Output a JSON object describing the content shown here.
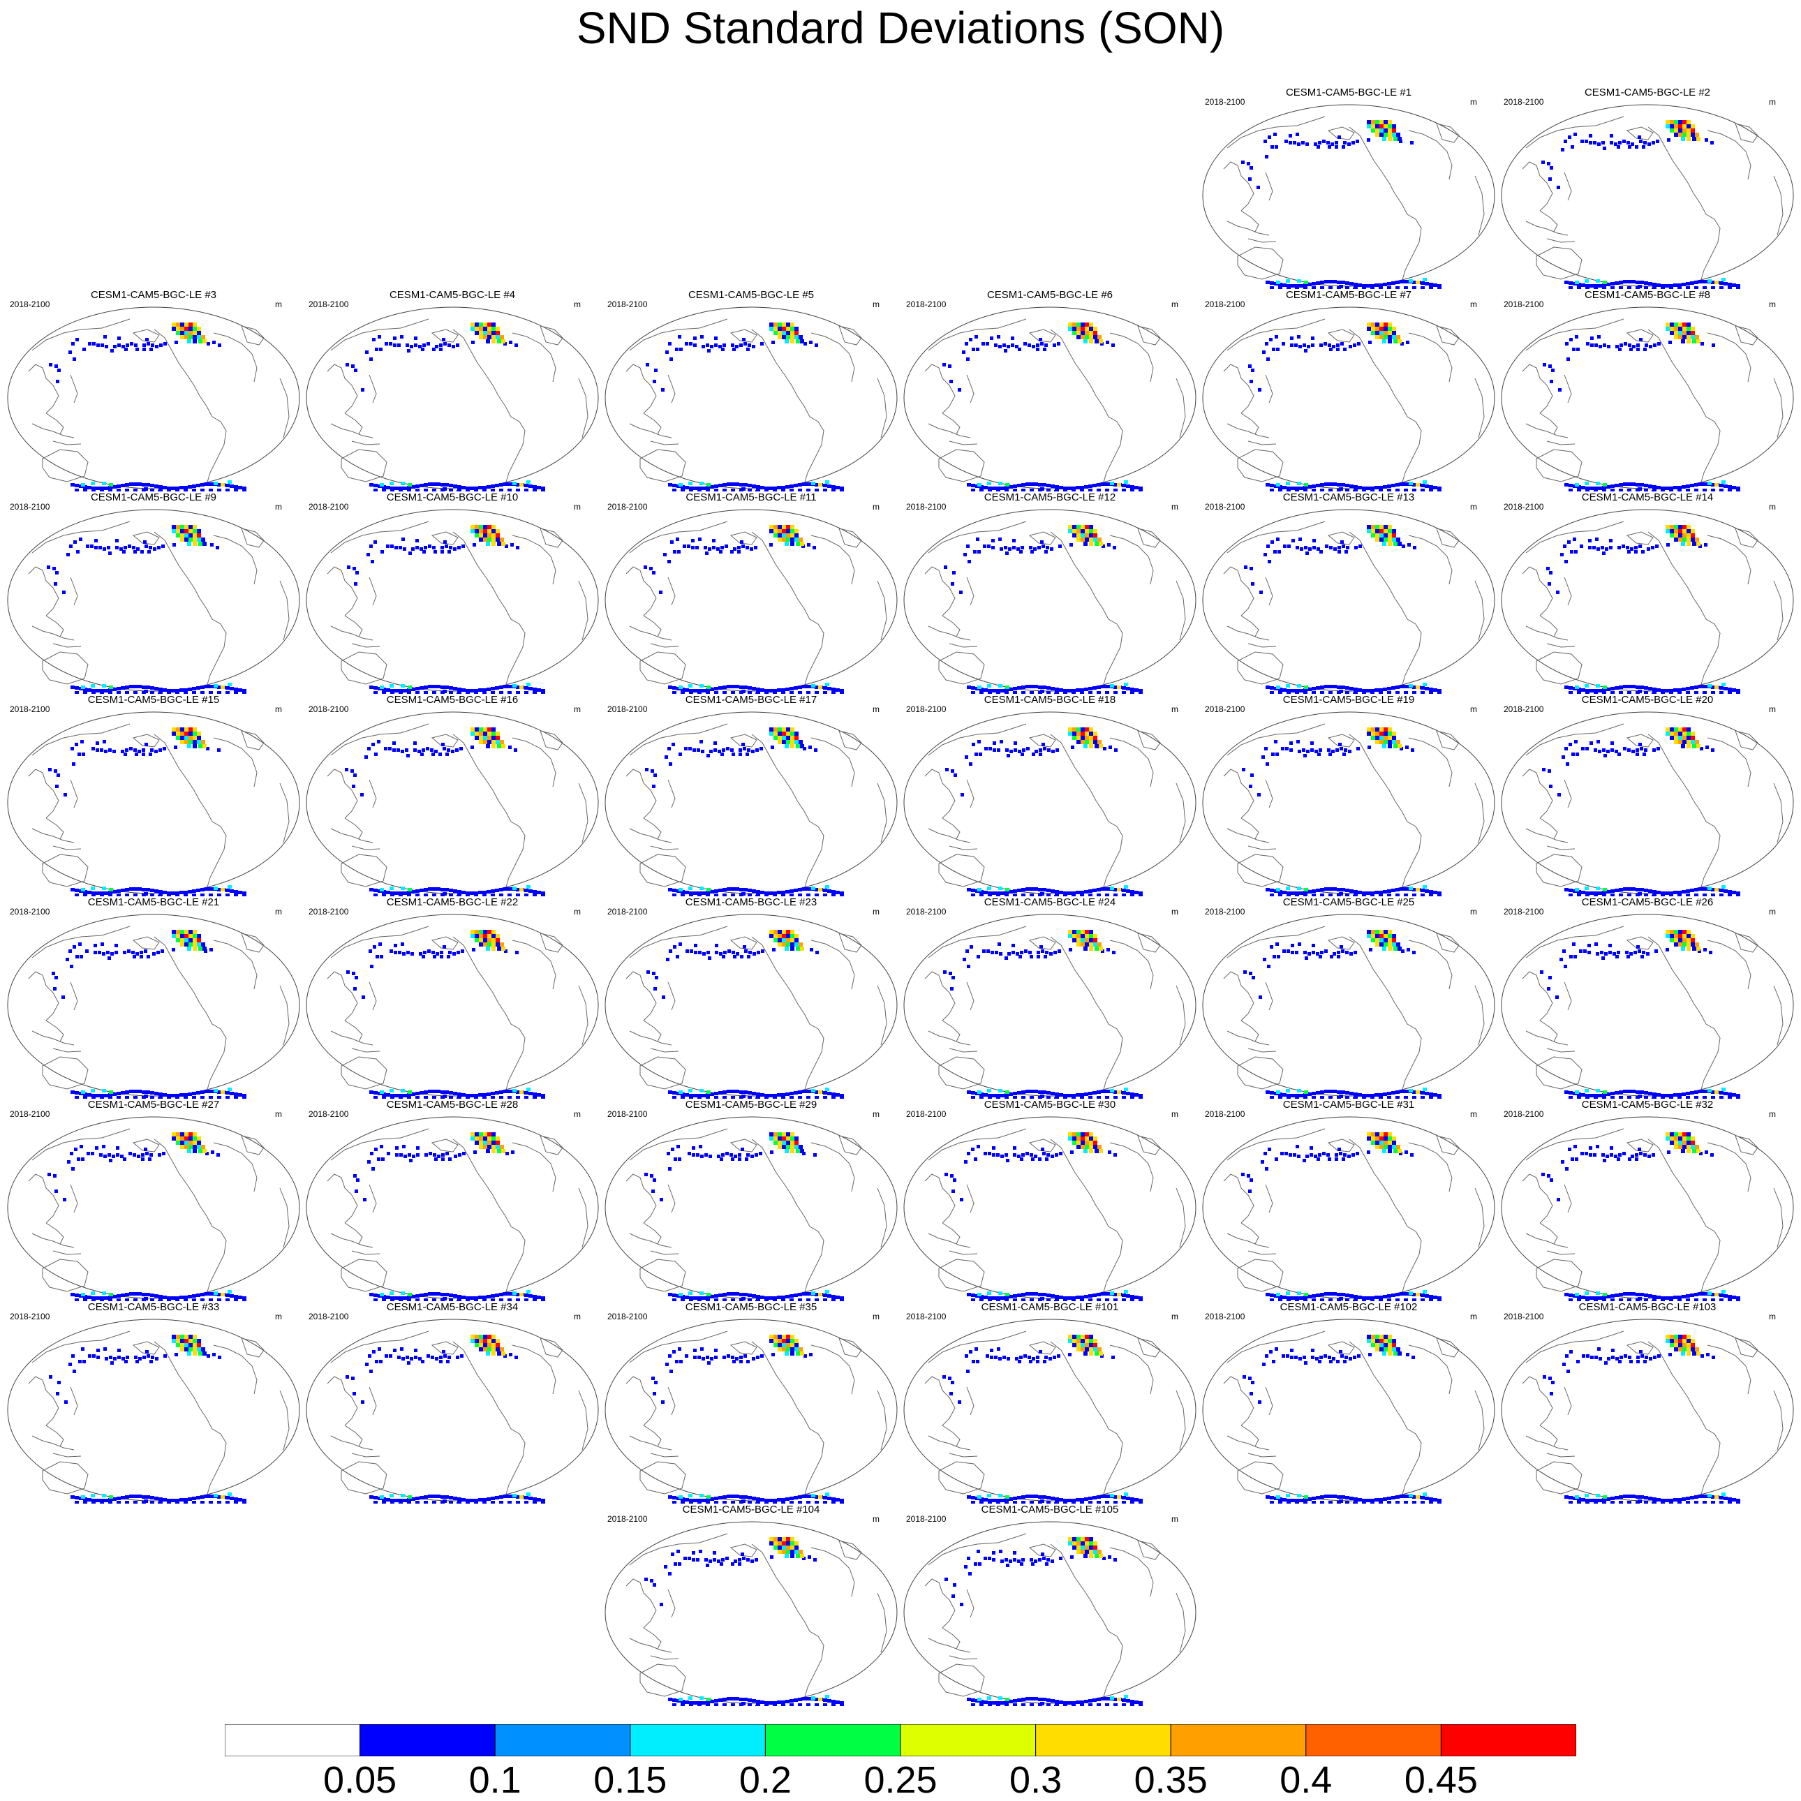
{
  "title": "SND Standard Deviations (SON)",
  "panel_period": "2018-2100",
  "panel_units": "m",
  "panels": [
    "CESM1-CAM5-BGC-LE #1",
    "CESM1-CAM5-BGC-LE #2",
    "CESM1-CAM5-BGC-LE #3",
    "CESM1-CAM5-BGC-LE #4",
    "CESM1-CAM5-BGC-LE #5",
    "CESM1-CAM5-BGC-LE #6",
    "CESM1-CAM5-BGC-LE #7",
    "CESM1-CAM5-BGC-LE #8",
    "CESM1-CAM5-BGC-LE #9",
    "CESM1-CAM5-BGC-LE #10",
    "CESM1-CAM5-BGC-LE #11",
    "CESM1-CAM5-BGC-LE #12",
    "CESM1-CAM5-BGC-LE #13",
    "CESM1-CAM5-BGC-LE #14",
    "CESM1-CAM5-BGC-LE #15",
    "CESM1-CAM5-BGC-LE #16",
    "CESM1-CAM5-BGC-LE #17",
    "CESM1-CAM5-BGC-LE #18",
    "CESM1-CAM5-BGC-LE #19",
    "CESM1-CAM5-BGC-LE #20",
    "CESM1-CAM5-BGC-LE #21",
    "CESM1-CAM5-BGC-LE #22",
    "CESM1-CAM5-BGC-LE #23",
    "CESM1-CAM5-BGC-LE #24",
    "CESM1-CAM5-BGC-LE #25",
    "CESM1-CAM5-BGC-LE #26",
    "CESM1-CAM5-BGC-LE #27",
    "CESM1-CAM5-BGC-LE #28",
    "CESM1-CAM5-BGC-LE #29",
    "CESM1-CAM5-BGC-LE #30",
    "CESM1-CAM5-BGC-LE #31",
    "CESM1-CAM5-BGC-LE #32",
    "CESM1-CAM5-BGC-LE #33",
    "CESM1-CAM5-BGC-LE #34",
    "CESM1-CAM5-BGC-LE #35",
    "CESM1-CAM5-BGC-LE #101",
    "CESM1-CAM5-BGC-LE #102",
    "CESM1-CAM5-BGC-LE #103",
    "CESM1-CAM5-BGC-LE #104",
    "CESM1-CAM5-BGC-LE #105"
  ],
  "colorbar": {
    "labels": [
      "0.05",
      "0.1",
      "0.15",
      "0.2",
      "0.25",
      "0.3",
      "0.35",
      "0.4",
      "0.45"
    ],
    "colors": [
      "#ffffff",
      "#0000ff",
      "#0090ff",
      "#00eeff",
      "#00ff44",
      "#ddff00",
      "#ffdd00",
      "#ffa000",
      "#ff6000",
      "#ff0000"
    ]
  },
  "map_colors": {
    "low": "#0000ff",
    "mid": "#00eeff",
    "mid2": "#00ff44",
    "high": "#ffdd00",
    "higher": "#ffa000",
    "top": "#ff0000"
  }
}
